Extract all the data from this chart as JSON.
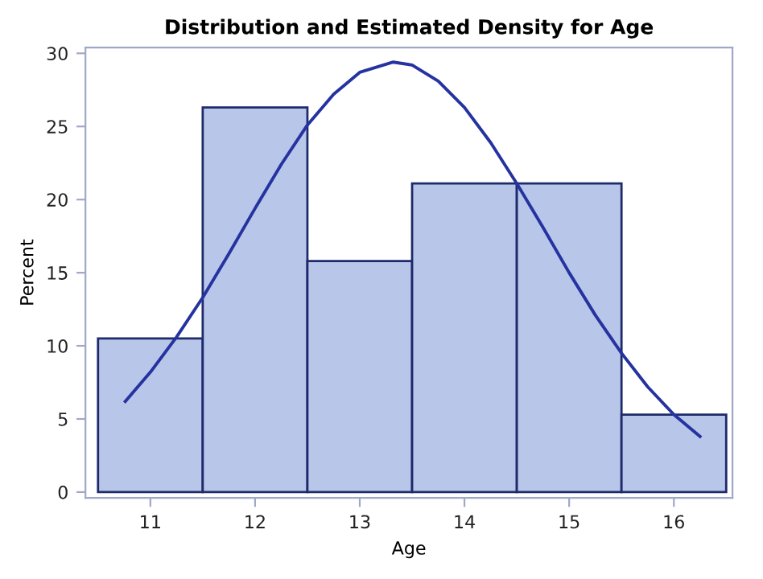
{
  "chart_data": {
    "type": "histogram",
    "title": "Distribution and Estimated Density for Age",
    "xlabel": "Age",
    "ylabel": "Percent",
    "bins": [
      10.5,
      11.5,
      12.5,
      13.5,
      14.5,
      15.5,
      16.5
    ],
    "values": [
      10.5,
      26.3,
      15.8,
      21.1,
      21.1,
      5.3
    ],
    "color": "#b8c6ea",
    "series": [
      {
        "type": "line",
        "color": "#2533a0",
        "x": [
          10.76,
          11.0,
          11.25,
          11.5,
          11.75,
          12.0,
          12.25,
          12.5,
          12.75,
          13.0,
          13.32,
          13.5,
          13.75,
          14.0,
          14.25,
          14.5,
          14.75,
          15.0,
          15.25,
          15.5,
          15.75,
          16.0,
          16.25
        ],
        "values": [
          6.2,
          8.2,
          10.6,
          13.3,
          16.3,
          19.4,
          22.4,
          25.1,
          27.2,
          28.7,
          29.4,
          29.2,
          28.1,
          26.3,
          23.9,
          21.1,
          18.1,
          15.0,
          12.1,
          9.5,
          7.2,
          5.3,
          3.8
        ]
      }
    ],
    "xlim": [
      10.38,
      16.56
    ],
    "xticks": [
      11,
      12,
      13,
      14,
      15,
      16
    ],
    "ylim": [
      -0.4,
      30.4
    ],
    "yticks": [
      0,
      5,
      10,
      15,
      20,
      25,
      30
    ],
    "grid": false,
    "legend": false
  }
}
